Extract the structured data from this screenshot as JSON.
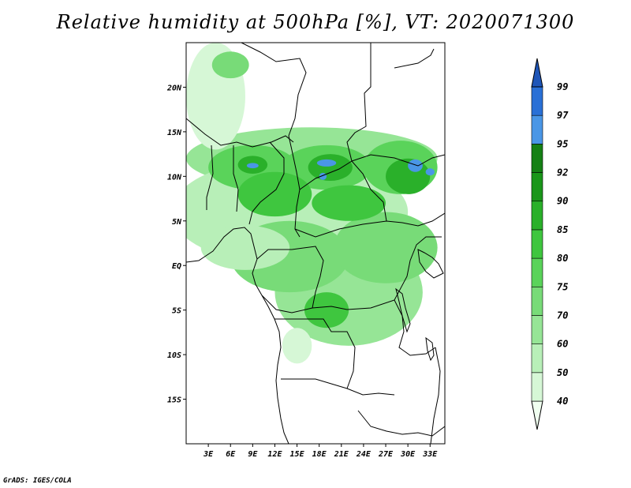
{
  "title": "Relative humidity at 500hPa [%], VT: 2020071300",
  "credit": "GrADS: IGES/COLA",
  "map": {
    "lon_range": [
      0,
      35
    ],
    "lat_range": [
      -20,
      25
    ],
    "lat_ticks": [
      {
        "value": 20,
        "label": "20N"
      },
      {
        "value": 15,
        "label": "15N"
      },
      {
        "value": 10,
        "label": "10N"
      },
      {
        "value": 5,
        "label": "5N"
      },
      {
        "value": 0,
        "label": "EQ"
      },
      {
        "value": -5,
        "label": "5S"
      },
      {
        "value": -10,
        "label": "10S"
      },
      {
        "value": -15,
        "label": "15S"
      }
    ],
    "lon_ticks": [
      {
        "value": 3,
        "label": "3E"
      },
      {
        "value": 6,
        "label": "6E"
      },
      {
        "value": 9,
        "label": "9E"
      },
      {
        "value": 12,
        "label": "12E"
      },
      {
        "value": 15,
        "label": "15E"
      },
      {
        "value": 18,
        "label": "18E"
      },
      {
        "value": 21,
        "label": "21E"
      },
      {
        "value": 24,
        "label": "24E"
      },
      {
        "value": 27,
        "label": "27E"
      },
      {
        "value": 30,
        "label": "30E"
      },
      {
        "value": 33,
        "label": "33E"
      }
    ]
  },
  "colorbar": {
    "levels": [
      {
        "label": "40",
        "color": "#f0fff0"
      },
      {
        "label": "50",
        "color": "#d6f7d6"
      },
      {
        "label": "60",
        "color": "#b8efb8"
      },
      {
        "label": "70",
        "color": "#96e596"
      },
      {
        "label": "75",
        "color": "#78db78"
      },
      {
        "label": "80",
        "color": "#5ad35a"
      },
      {
        "label": "85",
        "color": "#3fc63f"
      },
      {
        "label": "90",
        "color": "#2ab02a"
      },
      {
        "label": "92",
        "color": "#1a961a"
      },
      {
        "label": "95",
        "color": "#158015"
      },
      {
        "label": "97",
        "color": "#4a96e6"
      },
      {
        "label": "99",
        "color": "#2a70d6"
      }
    ],
    "top_color": "#1f56b8"
  },
  "humidity_regions": [
    {
      "lon": 17,
      "lat": 12,
      "rlon": 17,
      "rlat": 3.5,
      "level": 3
    },
    {
      "lon": 14,
      "lat": 6,
      "rlon": 16,
      "rlat": 6,
      "level": 2
    },
    {
      "lon": 4,
      "lat": 19,
      "rlon": 4,
      "rlat": 6,
      "level": 1
    },
    {
      "lon": 6,
      "lat": 22.5,
      "rlon": 2.5,
      "rlat": 1.5,
      "level": 4
    },
    {
      "lon": 22,
      "lat": -3,
      "rlon": 10,
      "rlat": 6,
      "level": 3
    },
    {
      "lon": 14,
      "lat": 1,
      "rlon": 8,
      "rlat": 4,
      "level": 4
    },
    {
      "lon": 27,
      "lat": 2,
      "rlon": 7,
      "rlat": 4,
      "level": 4
    },
    {
      "lon": 9,
      "lat": 11,
      "rlon": 6,
      "rlat": 2.5,
      "level": 5
    },
    {
      "lon": 19,
      "lat": 11,
      "rlon": 6,
      "rlat": 2.5,
      "level": 5
    },
    {
      "lon": 29,
      "lat": 11,
      "rlon": 5,
      "rlat": 3,
      "level": 5
    },
    {
      "lon": 12,
      "lat": 8,
      "rlon": 5,
      "rlat": 2.5,
      "level": 6
    },
    {
      "lon": 22,
      "lat": 7,
      "rlon": 5,
      "rlat": 2,
      "level": 6
    },
    {
      "lon": 30,
      "lat": 10,
      "rlon": 3,
      "rlat": 2,
      "level": 7
    },
    {
      "lon": 19.5,
      "lat": 11,
      "rlon": 3,
      "rlat": 1.5,
      "level": 7
    },
    {
      "lon": 9,
      "lat": 11.3,
      "rlon": 2,
      "rlat": 1,
      "level": 7
    },
    {
      "lon": 19,
      "lat": -5,
      "rlon": 3,
      "rlat": 2,
      "level": 6
    },
    {
      "lon": 9,
      "lat": 11.2,
      "rlon": 0.8,
      "rlat": 0.3,
      "level": 10
    },
    {
      "lon": 19,
      "lat": 11.5,
      "rlon": 1.3,
      "rlat": 0.4,
      "level": 10
    },
    {
      "lon": 18.5,
      "lat": 10,
      "rlon": 0.5,
      "rlat": 0.4,
      "level": 10
    },
    {
      "lon": 31,
      "lat": 11.2,
      "rlon": 1.0,
      "rlat": 0.7,
      "level": 10
    },
    {
      "lon": 33,
      "lat": 10.5,
      "rlon": 0.6,
      "rlat": 0.4,
      "level": 10
    },
    {
      "lon": 8,
      "lat": 2,
      "rlon": 6,
      "rlat": 2.5,
      "level": 2
    },
    {
      "lon": 15,
      "lat": -9,
      "rlon": 2,
      "rlat": 2,
      "level": 1
    }
  ]
}
